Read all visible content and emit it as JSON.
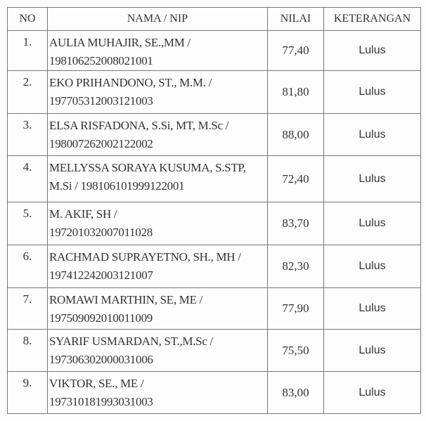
{
  "headers": {
    "no": "NO",
    "nama": "NAMA / NIP",
    "nilai": "NILAI",
    "keterangan": "KETERANGAN"
  },
  "rows": [
    {
      "no": "1.",
      "line1": "AULIA MUHAJIR, SE.,MM /",
      "line2": "198106252008021001",
      "nilai": "77,40",
      "keterangan": "Lulus"
    },
    {
      "no": "2.",
      "line1": "EKO PRIHANDONO, ST., M.M. /",
      "line2": "197705312003121003",
      "nilai": "81,80",
      "keterangan": "Lulus"
    },
    {
      "no": "3.",
      "line1": "ELSA RISFADONA, S.Si, MT, M.Sc /",
      "line2": "198007262002122002",
      "nilai": "88,00",
      "keterangan": "Lulus"
    },
    {
      "no": "4.",
      "line1": "MELLYSSA SORAYA KUSUMA, S.STP,",
      "line2": "M.Si / 198106101999122001",
      "nilai": "72,40",
      "keterangan": "Lulus"
    },
    {
      "no": "5.",
      "line1": "M. AKIF, SH /",
      "line2": "197201032007011028",
      "nilai": "83,70",
      "keterangan": "Lulus"
    },
    {
      "no": "6.",
      "line1": "RACHMAD SUPRAYETNO, SH., MH /",
      "line2": "197412242003121007",
      "nilai": "82,30",
      "keterangan": "Lulus"
    },
    {
      "no": "7.",
      "line1": "ROMAWI MARTHIN, SE, ME /",
      "line2": "197509092010011009",
      "nilai": "77,90",
      "keterangan": "Lulus"
    },
    {
      "no": "8.",
      "line1": "SYARIF USMARDAN, ST.,M.Sc /",
      "line2": "197306302000031006",
      "nilai": "75,50",
      "keterangan": "Lulus"
    },
    {
      "no": "9.",
      "line1": "VIKTOR, SE., ME /",
      "line2": "197310181993031003",
      "nilai": "83,00",
      "keterangan": "Lulus"
    }
  ]
}
